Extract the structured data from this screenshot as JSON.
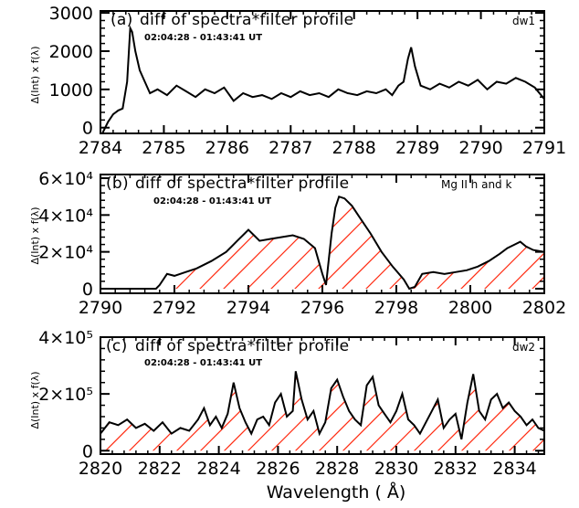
{
  "chart_data": [
    {
      "type": "line",
      "panel_label": "(a)",
      "title": "diff of spectra*filter profile",
      "subtitle": "02:04:28 - 01:43:41 UT",
      "tag": "dw1",
      "ylabel": "Δ(Int) x f(λ)",
      "xlabel": "",
      "xlim": [
        2784,
        2791
      ],
      "ylim": [
        -150,
        3050
      ],
      "x_ticks": [
        2784,
        2785,
        2786,
        2787,
        2788,
        2789,
        2790,
        2791
      ],
      "x_tick_labels": [
        "2784",
        "2785",
        "2786",
        "2787",
        "2788",
        "2789",
        "2790",
        "2791"
      ],
      "y_ticks": [
        0,
        1000,
        2000,
        3000
      ],
      "y_tick_labels": [
        "0",
        "1000",
        "2000",
        "3000"
      ],
      "hatched": false,
      "series": [
        {
          "x": [
            2784.03,
            2784.12,
            2784.2,
            2784.28,
            2784.35,
            2784.42,
            2784.47,
            2784.5,
            2784.55,
            2784.62,
            2784.7,
            2784.78,
            2784.9,
            2785.05,
            2785.2,
            2785.35,
            2785.5,
            2785.65,
            2785.8,
            2785.95,
            2786.1,
            2786.25,
            2786.4,
            2786.55,
            2786.7,
            2786.85,
            2787.0,
            2787.15,
            2787.3,
            2787.45,
            2787.6,
            2787.75,
            2787.9,
            2788.05,
            2788.2,
            2788.35,
            2788.5,
            2788.6,
            2788.7,
            2788.78,
            2788.85,
            2788.9,
            2788.96,
            2789.05,
            2789.2,
            2789.35,
            2789.5,
            2789.65,
            2789.8,
            2789.95,
            2790.1,
            2790.25,
            2790.4,
            2790.55,
            2790.7,
            2790.85,
            2791.0
          ],
          "y": [
            -150,
            150,
            350,
            450,
            500,
            1200,
            2600,
            2500,
            2000,
            1500,
            1200,
            900,
            1000,
            850,
            1100,
            950,
            800,
            1000,
            900,
            1050,
            700,
            900,
            800,
            850,
            750,
            900,
            800,
            950,
            850,
            900,
            800,
            1000,
            900,
            850,
            950,
            900,
            1000,
            850,
            1100,
            1200,
            1800,
            2100,
            1600,
            1100,
            1000,
            1150,
            1050,
            1200,
            1100,
            1250,
            1000,
            1200,
            1150,
            1300,
            1200,
            1050,
            750
          ]
        }
      ]
    },
    {
      "type": "line",
      "panel_label": "(b)",
      "title": "diff of spectra*filter profile",
      "subtitle": "02:04:28 - 01:43:41 UT",
      "tag": "Mg II h and k",
      "ylabel": "Δ(Int) x f(λ)",
      "xlabel": "",
      "xlim": [
        2790,
        2802
      ],
      "ylim": [
        -2500,
        62000
      ],
      "x_ticks": [
        2790,
        2792,
        2794,
        2796,
        2798,
        2800,
        2802
      ],
      "x_tick_labels": [
        "2790",
        "2792",
        "2794",
        "2796",
        "2798",
        "2800",
        "2802"
      ],
      "y_ticks": [
        0,
        20000,
        40000,
        60000
      ],
      "y_tick_labels": [
        "0",
        "2×10⁴",
        "4×10⁴",
        "6×10⁴"
      ],
      "hatched": true,
      "series": [
        {
          "x": [
            2790.0,
            2791.5,
            2791.6,
            2791.8,
            2792.0,
            2792.3,
            2792.6,
            2793.0,
            2793.4,
            2793.7,
            2793.9,
            2794.0,
            2794.15,
            2794.3,
            2794.6,
            2794.9,
            2795.2,
            2795.5,
            2795.8,
            2796.0,
            2796.1,
            2796.25,
            2796.35,
            2796.45,
            2796.6,
            2796.8,
            2797.0,
            2797.3,
            2797.6,
            2797.9,
            2798.2,
            2798.35,
            2798.5,
            2798.7,
            2799.0,
            2799.3,
            2799.6,
            2799.9,
            2800.2,
            2800.5,
            2800.8,
            2801.0,
            2801.2,
            2801.35,
            2801.5,
            2801.7,
            2802.0
          ],
          "y": [
            0,
            0,
            2000,
            8000,
            7000,
            9000,
            11000,
            15000,
            20000,
            26000,
            30000,
            32000,
            29000,
            26000,
            27000,
            28000,
            29000,
            27000,
            22000,
            8000,
            2000,
            30000,
            44000,
            50000,
            49000,
            45000,
            39000,
            30000,
            20000,
            12000,
            5000,
            0,
            1000,
            8000,
            9000,
            8000,
            9000,
            10000,
            12000,
            15000,
            19000,
            22000,
            24000,
            25500,
            23000,
            21000,
            20000
          ]
        }
      ]
    },
    {
      "type": "line",
      "panel_label": "(c)",
      "title": "diff of spectra*filter profile",
      "subtitle": "02:04:28 - 01:43:41 UT",
      "tag": "dw2",
      "ylabel": "Δ(Int) x f(λ)",
      "xlabel": "Wavelength ( Å)",
      "xlim": [
        2820,
        2835
      ],
      "ylim": [
        -12000,
        400000
      ],
      "x_ticks": [
        2820,
        2822,
        2824,
        2826,
        2828,
        2830,
        2832,
        2834
      ],
      "x_tick_labels": [
        "2820",
        "2822",
        "2824",
        "2826",
        "2828",
        "2830",
        "2832",
        "2834"
      ],
      "y_ticks": [
        0,
        200000,
        400000
      ],
      "y_tick_labels": [
        "0",
        "2×10⁵",
        "4×10⁵"
      ],
      "hatched": true,
      "series": [
        {
          "x": [
            2820.0,
            2820.3,
            2820.6,
            2820.9,
            2821.2,
            2821.5,
            2821.8,
            2822.1,
            2822.4,
            2822.7,
            2823.0,
            2823.3,
            2823.5,
            2823.7,
            2823.9,
            2824.1,
            2824.3,
            2824.5,
            2824.7,
            2824.9,
            2825.1,
            2825.3,
            2825.5,
            2825.7,
            2825.9,
            2826.1,
            2826.3,
            2826.5,
            2826.6,
            2826.8,
            2827.0,
            2827.2,
            2827.4,
            2827.6,
            2827.8,
            2828.0,
            2828.2,
            2828.4,
            2828.6,
            2828.8,
            2829.0,
            2829.2,
            2829.4,
            2829.6,
            2829.8,
            2830.0,
            2830.2,
            2830.4,
            2830.6,
            2830.8,
            2831.0,
            2831.2,
            2831.4,
            2831.6,
            2831.8,
            2832.0,
            2832.2,
            2832.4,
            2832.6,
            2832.8,
            2833.0,
            2833.2,
            2833.4,
            2833.6,
            2833.8,
            2834.0,
            2834.2,
            2834.4,
            2834.6,
            2834.8,
            2835.0
          ],
          "y": [
            60000,
            100000,
            90000,
            110000,
            80000,
            95000,
            70000,
            100000,
            60000,
            80000,
            70000,
            110000,
            150000,
            90000,
            120000,
            80000,
            130000,
            240000,
            150000,
            100000,
            60000,
            110000,
            120000,
            90000,
            170000,
            200000,
            120000,
            140000,
            280000,
            180000,
            110000,
            140000,
            60000,
            100000,
            220000,
            250000,
            190000,
            140000,
            110000,
            90000,
            230000,
            260000,
            160000,
            130000,
            100000,
            140000,
            200000,
            110000,
            90000,
            60000,
            100000,
            140000,
            180000,
            80000,
            110000,
            130000,
            40000,
            170000,
            270000,
            140000,
            110000,
            180000,
            200000,
            150000,
            170000,
            140000,
            120000,
            90000,
            110000,
            80000,
            70000
          ]
        }
      ]
    }
  ],
  "colors": {
    "line": "#000000",
    "hatch": "#ff2a10",
    "axis": "#000000",
    "background": "#ffffff"
  }
}
